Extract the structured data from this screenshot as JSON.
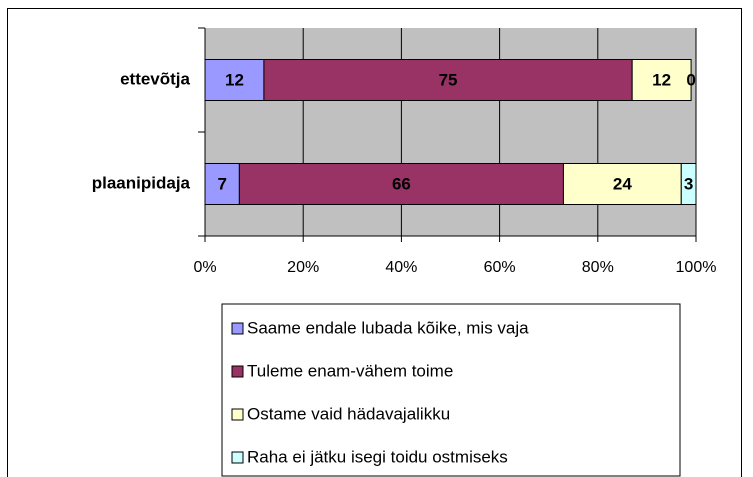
{
  "chart_data": {
    "type": "bar",
    "orientation": "horizontal",
    "stacked": true,
    "categories": [
      "ettevõtja",
      "plaanipidaja"
    ],
    "series": [
      {
        "name": "Saame endale lubada kõike, mis vaja",
        "color": "#9999ff",
        "values": [
          12,
          7
        ]
      },
      {
        "name": "Tuleme enam-vähem toime",
        "color": "#993366",
        "values": [
          75,
          66
        ]
      },
      {
        "name": "Ostame vaid hädavajalikku",
        "color": "#ffffcc",
        "values": [
          12,
          24
        ]
      },
      {
        "name": "Raha ei jätku isegi toidu ostmiseks",
        "color": "#ccffff",
        "values": [
          0,
          3
        ]
      }
    ],
    "xlim": [
      0,
      100
    ],
    "xticks": [
      {
        "value": 0,
        "label": "0%"
      },
      {
        "value": 20,
        "label": "20%"
      },
      {
        "value": 40,
        "label": "40%"
      },
      {
        "value": 60,
        "label": "60%"
      },
      {
        "value": 80,
        "label": "80%"
      },
      {
        "value": 100,
        "label": "100%"
      }
    ],
    "grid": true,
    "plot_background": "#c0c0c0",
    "legend": "bottom"
  }
}
